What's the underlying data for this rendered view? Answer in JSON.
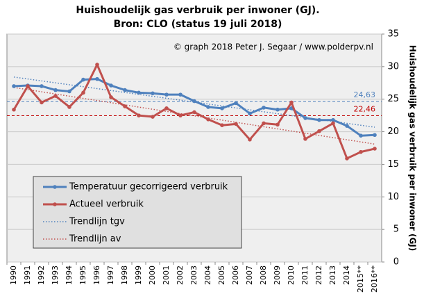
{
  "chart_data": {
    "type": "line",
    "title": "Huishoudelijk  gas verbruik  per inwoner (GJ).",
    "subtitle": "Bron: CLO (status 19 juli  2018)",
    "annotation": "© graph 2018 Peter J. Segaar / www.polderpv.nl",
    "ylabel": "Huishoudelijk  gas verbruik  per inwoner  (GJ)",
    "categories": [
      "1990",
      "1991",
      "1992",
      "1993",
      "1994",
      "1995",
      "1996",
      "1997",
      "1998",
      "1999",
      "2000",
      "2001",
      "2002",
      "2003",
      "2004",
      "2005",
      "2006",
      "2007",
      "2008",
      "2009",
      "2010",
      "2011",
      "2012",
      "2013",
      "2014",
      "2015**",
      "2016**"
    ],
    "series": [
      {
        "name": "Temperatuur gecorrigeerd verbruik",
        "color": "#4f81bd",
        "values": [
          27.0,
          27.1,
          27.0,
          26.4,
          26.2,
          28.0,
          28.1,
          27.1,
          26.4,
          26.0,
          25.9,
          25.7,
          25.7,
          24.7,
          23.8,
          23.6,
          24.4,
          22.8,
          23.7,
          23.4,
          23.6,
          22.1,
          21.8,
          21.8,
          20.9,
          19.4,
          19.5
        ]
      },
      {
        "name": "Actueel verbruik",
        "color": "#c0504d",
        "values": [
          23.4,
          27.0,
          24.5,
          25.5,
          23.8,
          26.0,
          30.3,
          25.3,
          23.9,
          22.5,
          22.3,
          23.6,
          22.5,
          23.0,
          21.9,
          21.0,
          21.2,
          18.8,
          21.3,
          21.1,
          24.5,
          18.9,
          20.1,
          21.3,
          15.9,
          16.9,
          17.4
        ]
      }
    ],
    "trendlines": [
      {
        "name": "Trendlijn tgv",
        "color": "#4f81bd",
        "values": [
          28.4,
          20.7
        ]
      },
      {
        "name": "Trendlijn av",
        "color": "#c0504d",
        "values": [
          26.8,
          18.1
        ]
      }
    ],
    "reference_lines": [
      {
        "value": 24.63,
        "label": "24,63",
        "color": "#4f81bd"
      },
      {
        "value": 22.46,
        "label": "22,46",
        "color": "#c00000"
      }
    ],
    "ylim": [
      0,
      35
    ],
    "yticks": [
      0,
      5,
      10,
      15,
      20,
      25,
      30,
      35
    ],
    "grid": true
  }
}
